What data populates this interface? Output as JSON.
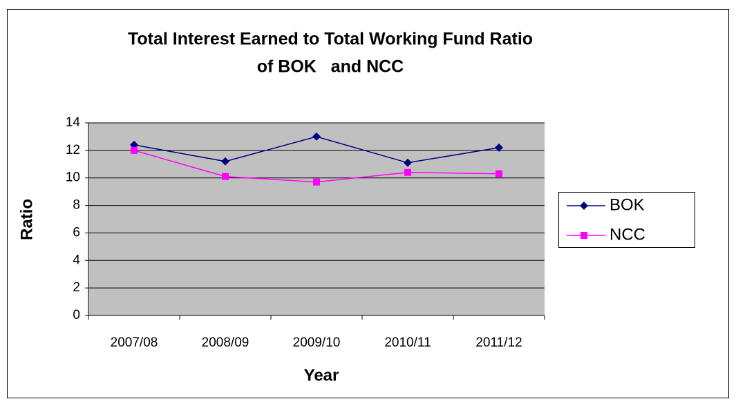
{
  "chart_data": {
    "type": "line",
    "title": [
      "Total Interest Earned to Total Working Fund Ratio",
      "of BOK   and NCC"
    ],
    "xlabel": "Year",
    "ylabel": "Ratio",
    "categories": [
      "2007/08",
      "2008/09",
      "2009/10",
      "2010/11",
      "2011/12"
    ],
    "series": [
      {
        "name": "BOK",
        "color": "#000080",
        "marker": "diamond",
        "values": [
          12.4,
          11.2,
          13.0,
          11.1,
          12.2
        ]
      },
      {
        "name": "NCC",
        "color": "#ff00ff",
        "marker": "square",
        "values": [
          12.0,
          10.1,
          9.7,
          10.4,
          10.3
        ]
      }
    ],
    "ylim": [
      0,
      14
    ],
    "yticks": [
      0,
      2,
      4,
      6,
      8,
      10,
      12,
      14
    ],
    "grid": true,
    "legend": "right",
    "plot_background": "#c0c0c0"
  }
}
